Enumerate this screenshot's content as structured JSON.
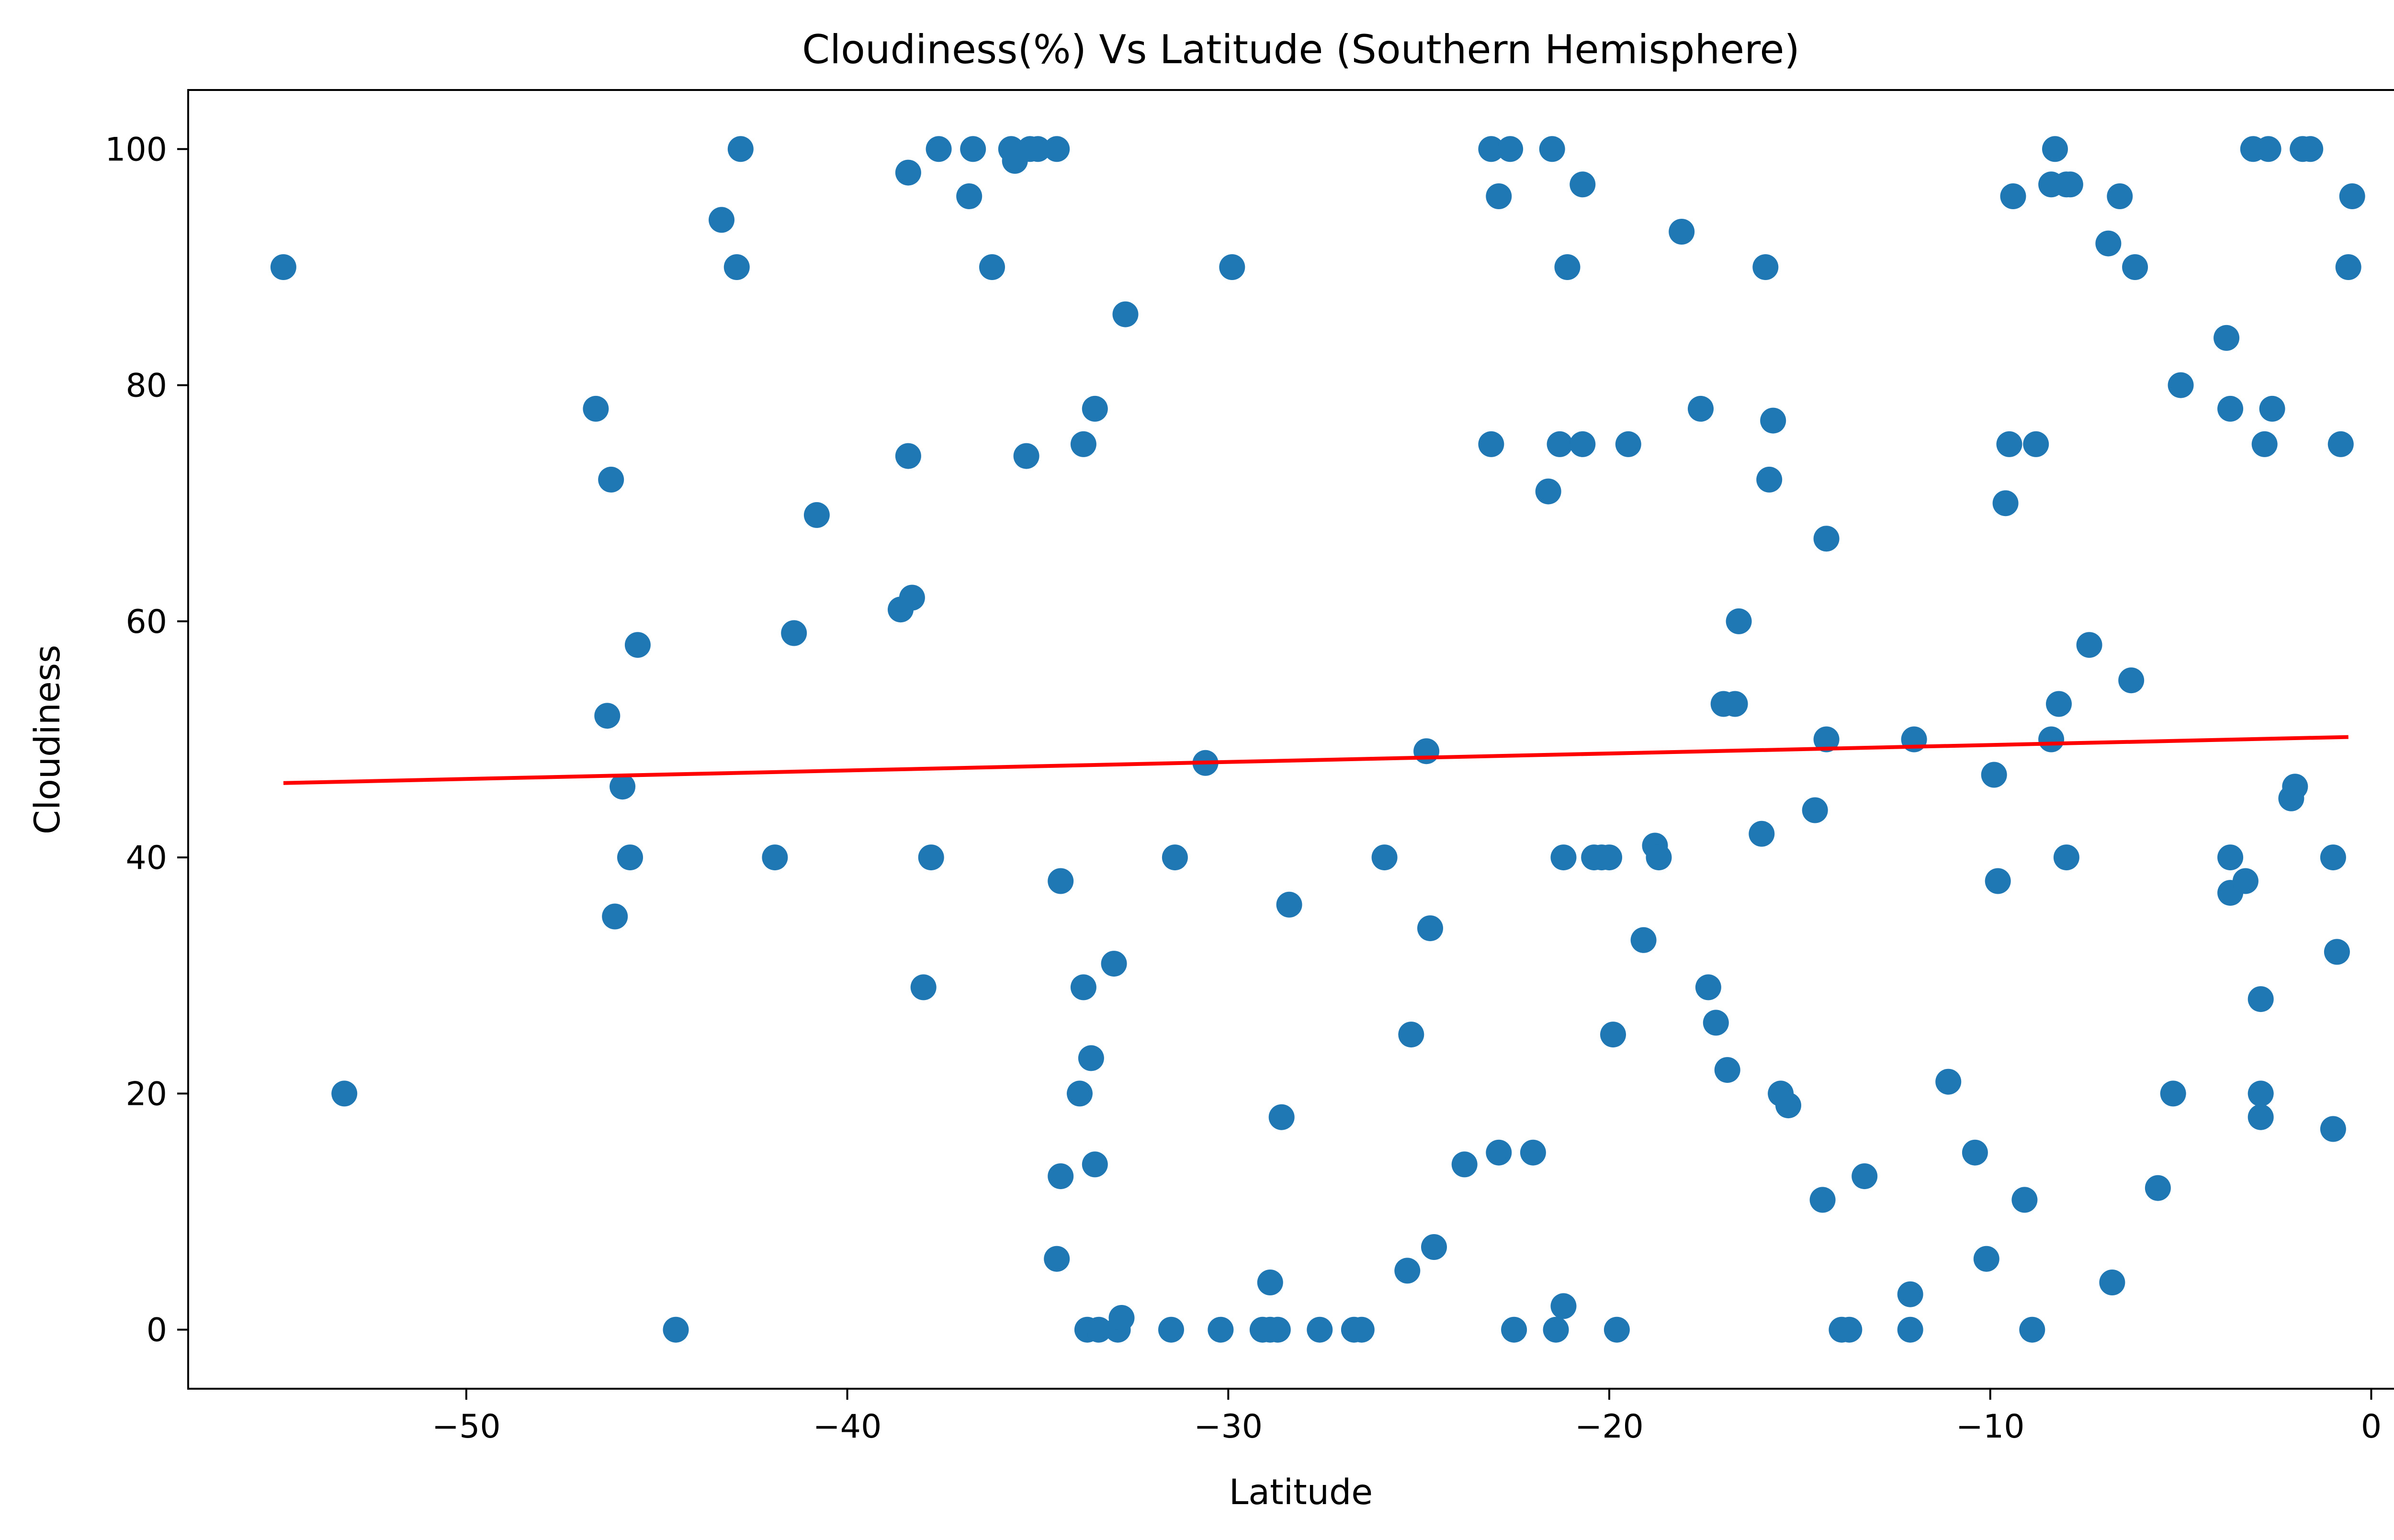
{
  "chart_data": {
    "type": "scatter",
    "title": "Cloudiness(%) Vs Latitude (Southern Hemisphere)",
    "xlabel": "Latitude",
    "ylabel": "Cloudiness",
    "xlim": [
      -57.3,
      1.1
    ],
    "ylim": [
      -5,
      105
    ],
    "x_ticks": [
      -50,
      -40,
      -30,
      -20,
      -10,
      0
    ],
    "x_tick_labels": [
      "−50",
      "−40",
      "−30",
      "−20",
      "−10",
      "0"
    ],
    "y_ticks": [
      0,
      20,
      40,
      60,
      80,
      100
    ],
    "y_tick_labels": [
      "0",
      "20",
      "40",
      "60",
      "80",
      "100"
    ],
    "grid": false,
    "legend": "none",
    "colors": {
      "points": "#1f77b4",
      "regression": "#ff0000",
      "axes": "#000000",
      "background": "#ffffff"
    },
    "regression_line": {
      "x": [
        -54.8,
        -0.6
      ],
      "y": [
        46.3,
        50.2
      ]
    },
    "points": [
      [
        -54.8,
        90
      ],
      [
        -53.2,
        20
      ],
      [
        -44.5,
        0
      ],
      [
        -46.6,
        78
      ],
      [
        -46.2,
        72
      ],
      [
        -46.3,
        52
      ],
      [
        -46.1,
        35
      ],
      [
        -45.9,
        46
      ],
      [
        -45.7,
        40
      ],
      [
        -45.5,
        58
      ],
      [
        -43.3,
        94
      ],
      [
        -42.9,
        90
      ],
      [
        -42.8,
        100
      ],
      [
        -41.9,
        40
      ],
      [
        -41.4,
        59
      ],
      [
        -40.8,
        69
      ],
      [
        -38.6,
        61
      ],
      [
        -38.3,
        62
      ],
      [
        -38.4,
        98
      ],
      [
        -38.4,
        74
      ],
      [
        -38.0,
        29
      ],
      [
        -37.8,
        40
      ],
      [
        -37.6,
        100
      ],
      [
        -36.8,
        96
      ],
      [
        -36.7,
        100
      ],
      [
        -36.2,
        90
      ],
      [
        -35.7,
        100
      ],
      [
        -35.6,
        99
      ],
      [
        -35.3,
        74
      ],
      [
        -35.2,
        100
      ],
      [
        -35.0,
        100
      ],
      [
        -34.5,
        100
      ],
      [
        -34.5,
        6
      ],
      [
        -34.4,
        13
      ],
      [
        -34.4,
        38
      ],
      [
        -33.9,
        20
      ],
      [
        -33.8,
        29
      ],
      [
        -33.8,
        75
      ],
      [
        -33.7,
        0
      ],
      [
        -33.6,
        23
      ],
      [
        -33.5,
        14
      ],
      [
        -33.5,
        78
      ],
      [
        -33.4,
        0
      ],
      [
        -33.0,
        31
      ],
      [
        -32.9,
        0
      ],
      [
        -32.8,
        1
      ],
      [
        -32.7,
        86
      ],
      [
        -31.5,
        0
      ],
      [
        -31.4,
        40
      ],
      [
        -30.6,
        48
      ],
      [
        -30.2,
        0
      ],
      [
        -29.9,
        90
      ],
      [
        -29.1,
        0
      ],
      [
        -28.9,
        4
      ],
      [
        -28.9,
        0
      ],
      [
        -28.7,
        0
      ],
      [
        -28.6,
        18
      ],
      [
        -28.4,
        36
      ],
      [
        -27.6,
        0
      ],
      [
        -26.7,
        0
      ],
      [
        -26.5,
        0
      ],
      [
        -25.9,
        40
      ],
      [
        -25.3,
        5
      ],
      [
        -25.2,
        25
      ],
      [
        -24.8,
        49
      ],
      [
        -24.7,
        34
      ],
      [
        -24.6,
        7
      ],
      [
        -23.8,
        14
      ],
      [
        -23.1,
        75
      ],
      [
        -23.1,
        100
      ],
      [
        -22.9,
        96
      ],
      [
        -22.9,
        15
      ],
      [
        -22.6,
        100
      ],
      [
        -22.5,
        0
      ],
      [
        -22.0,
        15
      ],
      [
        -21.6,
        71
      ],
      [
        -21.5,
        100
      ],
      [
        -21.4,
        0
      ],
      [
        -21.3,
        75
      ],
      [
        -21.2,
        40
      ],
      [
        -21.2,
        2
      ],
      [
        -21.1,
        90
      ],
      [
        -20.7,
        97
      ],
      [
        -20.7,
        75
      ],
      [
        -20.4,
        40
      ],
      [
        -20.2,
        40
      ],
      [
        -20.0,
        40
      ],
      [
        -19.9,
        25
      ],
      [
        -19.8,
        0
      ],
      [
        -19.5,
        75
      ],
      [
        -19.1,
        33
      ],
      [
        -18.8,
        41
      ],
      [
        -18.7,
        40
      ],
      [
        -18.1,
        93
      ],
      [
        -17.6,
        78
      ],
      [
        -17.4,
        29
      ],
      [
        -17.2,
        26
      ],
      [
        -17.0,
        53
      ],
      [
        -16.9,
        22
      ],
      [
        -16.7,
        53
      ],
      [
        -16.6,
        60
      ],
      [
        -16.0,
        42
      ],
      [
        -15.9,
        90
      ],
      [
        -15.8,
        72
      ],
      [
        -15.7,
        77
      ],
      [
        -15.5,
        20
      ],
      [
        -15.3,
        19
      ],
      [
        -14.6,
        44
      ],
      [
        -14.4,
        11
      ],
      [
        -14.3,
        50
      ],
      [
        -14.3,
        67
      ],
      [
        -13.9,
        0
      ],
      [
        -13.7,
        0
      ],
      [
        -13.3,
        13
      ],
      [
        -12.1,
        3
      ],
      [
        -12.1,
        0
      ],
      [
        -12.0,
        50
      ],
      [
        -11.1,
        21
      ],
      [
        -10.4,
        15
      ],
      [
        -10.1,
        6
      ],
      [
        -9.9,
        47
      ],
      [
        -9.8,
        38
      ],
      [
        -9.6,
        70
      ],
      [
        -9.5,
        75
      ],
      [
        -9.4,
        96
      ],
      [
        -9.1,
        11
      ],
      [
        -8.9,
        0
      ],
      [
        -8.8,
        75
      ],
      [
        -8.4,
        50
      ],
      [
        -8.4,
        97
      ],
      [
        -8.3,
        100
      ],
      [
        -8.2,
        53
      ],
      [
        -8.0,
        97
      ],
      [
        -8.0,
        40
      ],
      [
        -7.9,
        97
      ],
      [
        -7.4,
        58
      ],
      [
        -6.9,
        92
      ],
      [
        -6.8,
        4
      ],
      [
        -6.6,
        96
      ],
      [
        -6.3,
        55
      ],
      [
        -6.2,
        90
      ],
      [
        -5.6,
        12
      ],
      [
        -5.2,
        20
      ],
      [
        -5.0,
        80
      ],
      [
        -3.8,
        84
      ],
      [
        -3.7,
        40
      ],
      [
        -3.7,
        37
      ],
      [
        -3.7,
        78
      ],
      [
        -3.3,
        38
      ],
      [
        -3.1,
        100
      ],
      [
        -2.9,
        28
      ],
      [
        -2.9,
        20
      ],
      [
        -2.9,
        18
      ],
      [
        -2.8,
        75
      ],
      [
        -2.7,
        100
      ],
      [
        -2.6,
        78
      ],
      [
        -2.1,
        45
      ],
      [
        -2.0,
        46
      ],
      [
        -1.8,
        100
      ],
      [
        -1.6,
        100
      ],
      [
        -1.0,
        17
      ],
      [
        -1.0,
        40
      ],
      [
        -0.9,
        32
      ],
      [
        -0.8,
        75
      ],
      [
        -0.6,
        90
      ],
      [
        -0.5,
        96
      ]
    ]
  }
}
